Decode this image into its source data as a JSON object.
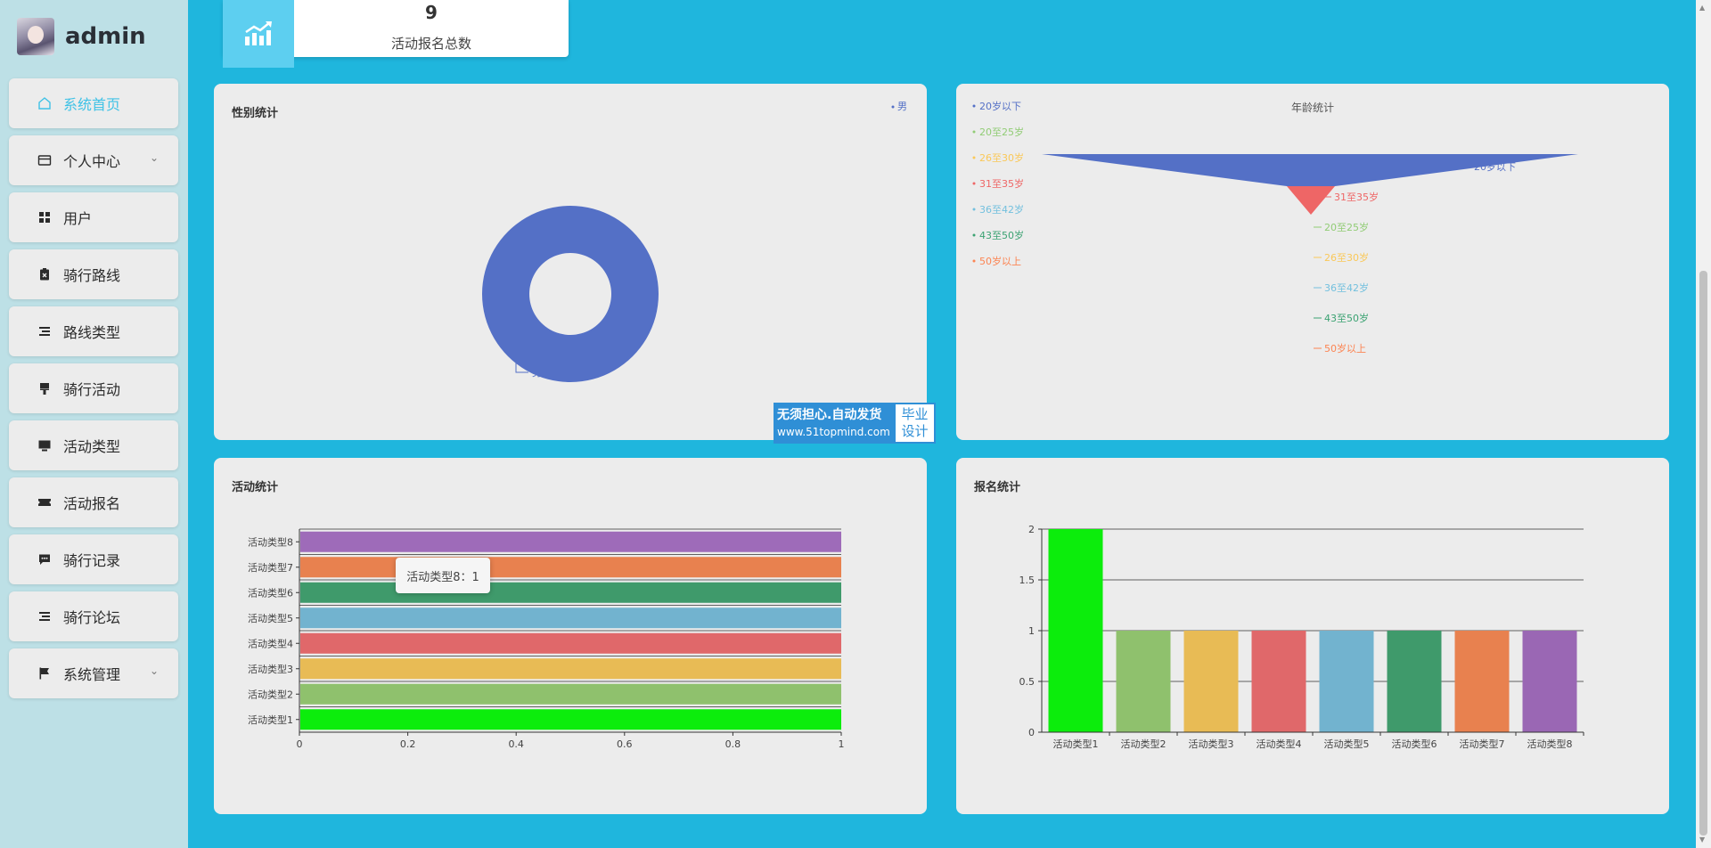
{
  "sidebar": {
    "username": "admin",
    "items": [
      {
        "label": "系统首页",
        "icon": "home-icon",
        "active": true,
        "expandable": false
      },
      {
        "label": "个人中心",
        "icon": "card-icon",
        "active": false,
        "expandable": true
      },
      {
        "label": "用户",
        "icon": "grid-icon",
        "active": false,
        "expandable": false
      },
      {
        "label": "骑行路线",
        "icon": "clipboard-icon",
        "active": false,
        "expandable": false
      },
      {
        "label": "路线类型",
        "icon": "list-icon",
        "active": false,
        "expandable": false
      },
      {
        "label": "骑行活动",
        "icon": "brush-icon",
        "active": false,
        "expandable": false
      },
      {
        "label": "活动类型",
        "icon": "monitor-icon",
        "active": false,
        "expandable": false
      },
      {
        "label": "活动报名",
        "icon": "ticket-icon",
        "active": false,
        "expandable": false
      },
      {
        "label": "骑行记录",
        "icon": "chat-icon",
        "active": false,
        "expandable": false
      },
      {
        "label": "骑行论坛",
        "icon": "list-icon",
        "active": false,
        "expandable": false
      },
      {
        "label": "系统管理",
        "icon": "flag-icon",
        "active": false,
        "expandable": true
      }
    ]
  },
  "stat": {
    "value": "9",
    "label": "活动报名总数",
    "icon": "trend-chart-icon"
  },
  "watermark": {
    "line1": "无须担心.自动发货",
    "line2": "www.51topmind.com",
    "right": "毕业 设计"
  },
  "tooltip": "活动类型8：1",
  "colors": {
    "primary": "#1fb6dd",
    "active": "#3fc2e6",
    "panel": "#ececec"
  },
  "chart_data": [
    {
      "type": "pie",
      "title": "性别统计",
      "donut": true,
      "legend": [
        "男"
      ],
      "legend_position": "top-right",
      "slices": [
        {
          "label": "男",
          "value": 1,
          "color": "#5470c6"
        }
      ]
    },
    {
      "type": "funnel",
      "title": "年龄统计",
      "legend_position": "top-left",
      "legend": [
        "20岁以下",
        "20至25岁",
        "26至30岁",
        "31至35岁",
        "36至42岁",
        "43至50岁",
        "50岁以上"
      ],
      "legend_colors": [
        "#5470c6",
        "#91cc75",
        "#fac858",
        "#ee6666",
        "#73c0de",
        "#3ba272",
        "#fc8452"
      ],
      "label_order": [
        "20岁以下",
        "31至35岁",
        "20至25岁",
        "26至30岁",
        "36至42岁",
        "43至50岁",
        "50岁以上"
      ],
      "label_colors": [
        "#5470c6",
        "#ee6666",
        "#91cc75",
        "#fac858",
        "#73c0de",
        "#3ba272",
        "#fc8452"
      ]
    },
    {
      "type": "bar",
      "orientation": "horizontal",
      "title": "活动统计",
      "categories": [
        "活动类型1",
        "活动类型2",
        "活动类型3",
        "活动类型4",
        "活动类型5",
        "活动类型6",
        "活动类型7",
        "活动类型8"
      ],
      "values": [
        1,
        1,
        1,
        1,
        1,
        1,
        1,
        1
      ],
      "colors": [
        "#0ced0c",
        "#8fc16d",
        "#e8bb55",
        "#e0686a",
        "#72b3cf",
        "#3f9a6b",
        "#e8814f",
        "#9e6bb9"
      ],
      "xlim": [
        0,
        1
      ],
      "ticks": [
        "0",
        "0.2",
        "0.4",
        "0.6",
        "0.8",
        "1"
      ]
    },
    {
      "type": "bar",
      "title": "报名统计",
      "categories": [
        "活动类型1",
        "活动类型2",
        "活动类型3",
        "活动类型4",
        "活动类型5",
        "活动类型6",
        "活动类型7",
        "活动类型8"
      ],
      "values": [
        2,
        1,
        1,
        1,
        1,
        1,
        1,
        1
      ],
      "colors": [
        "#0ced0c",
        "#8fc16d",
        "#e8bb55",
        "#e0686a",
        "#72b3cf",
        "#3f9a6b",
        "#e8814f",
        "#9a67b4"
      ],
      "ylim": [
        0,
        2
      ],
      "ticks": [
        "0",
        "0.5",
        "1",
        "1.5",
        "2"
      ],
      "grid": true
    }
  ]
}
